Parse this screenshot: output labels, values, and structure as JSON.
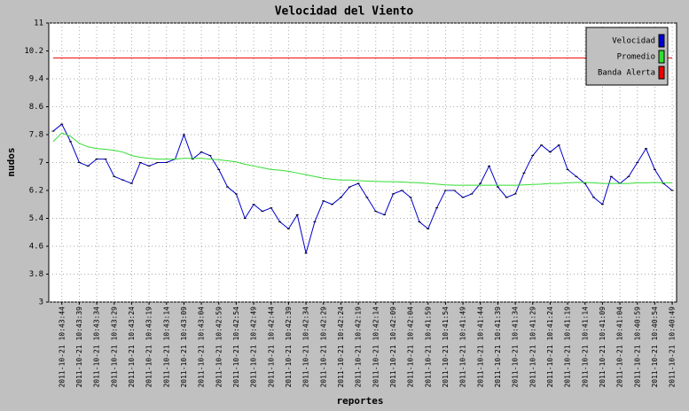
{
  "chart_data": {
    "type": "line",
    "title": "Velocidad del Viento",
    "xlabel": "reportes",
    "ylabel": "nudos",
    "categories": [
      null,
      "2011-10-21 10:43:44",
      null,
      "2011-10-21 10:43:39",
      null,
      "2011-10-21 10:43:34",
      null,
      "2011-10-21 10:43:29",
      null,
      "2011-10-21 10:43:24",
      null,
      "2011-10-21 10:43:19",
      null,
      "2011-10-21 10:43:14",
      null,
      "2011-10-21 10:43:09",
      null,
      "2011-10-21 10:43:04",
      null,
      "2011-10-21 10:42:59",
      null,
      "2011-10-21 10:42:54",
      null,
      "2011-10-21 10:42:49",
      null,
      "2011-10-21 10:42:44",
      null,
      "2011-10-21 10:42:39",
      null,
      "2011-10-21 10:42:34",
      null,
      "2011-10-21 10:42:29",
      null,
      "2011-10-21 10:42:24",
      null,
      "2011-10-21 10:42:19",
      null,
      "2011-10-21 10:42:14",
      null,
      "2011-10-21 10:42:09",
      null,
      "2011-10-21 10:42:04",
      null,
      "2011-10-21 10:41:59",
      null,
      "2011-10-21 10:41:54",
      null,
      "2011-10-21 10:41:49",
      null,
      "2011-10-21 10:41:44",
      null,
      "2011-10-21 10:41:39",
      null,
      "2011-10-21 10:41:34",
      null,
      "2011-10-21 10:41:29",
      null,
      "2011-10-21 10:41:24",
      null,
      "2011-10-21 10:41:19",
      null,
      "2011-10-21 10:41:14",
      null,
      "2011-10-21 10:41:09",
      null,
      "2011-10-21 10:41:04",
      null,
      "2011-10-21 10:40:59",
      null,
      "2011-10-21 10:40:54",
      null,
      "2011-10-21 10:40:49"
    ],
    "series": [
      {
        "name": "Velocidad",
        "color": "#0000cc",
        "values": [
          7.9,
          8.1,
          7.6,
          7.0,
          6.9,
          7.1,
          7.1,
          6.6,
          6.5,
          6.4,
          7.0,
          6.9,
          7.0,
          7.0,
          7.1,
          7.8,
          7.1,
          7.3,
          7.2,
          6.8,
          6.3,
          6.1,
          5.4,
          5.8,
          5.6,
          5.7,
          5.3,
          5.1,
          5.5,
          4.4,
          5.3,
          5.9,
          5.8,
          6.0,
          6.3,
          6.4,
          6.0,
          5.6,
          5.5,
          6.1,
          6.2,
          6.0,
          5.3,
          5.1,
          5.7,
          6.2,
          6.2,
          6.0,
          6.1,
          6.4,
          6.9,
          6.3,
          6.0,
          6.1,
          6.7,
          7.2,
          7.5,
          7.3,
          7.5,
          6.8,
          6.6,
          6.4,
          6.0,
          5.8,
          6.6,
          6.4,
          6.6,
          7.0,
          7.4,
          6.8,
          6.4,
          6.2
        ]
      },
      {
        "name": "Promedio",
        "color": "#33dd33",
        "values": [
          7.6,
          7.85,
          7.75,
          7.55,
          7.45,
          7.4,
          7.38,
          7.35,
          7.3,
          7.2,
          7.15,
          7.12,
          7.1,
          7.1,
          7.1,
          7.12,
          7.12,
          7.12,
          7.1,
          7.08,
          7.05,
          7.02,
          6.95,
          6.9,
          6.85,
          6.8,
          6.78,
          6.75,
          6.7,
          6.65,
          6.6,
          6.55,
          6.52,
          6.5,
          6.5,
          6.48,
          6.47,
          6.46,
          6.45,
          6.45,
          6.44,
          6.43,
          6.42,
          6.4,
          6.38,
          6.36,
          6.35,
          6.35,
          6.35,
          6.35,
          6.35,
          6.35,
          6.35,
          6.35,
          6.36,
          6.37,
          6.38,
          6.4,
          6.4,
          6.42,
          6.43,
          6.43,
          6.42,
          6.4,
          6.4,
          6.4,
          6.4,
          6.42,
          6.42,
          6.43,
          6.42,
          6.42
        ]
      },
      {
        "name": "Banda Alerta",
        "color": "#ee0000",
        "values": [
          10,
          10,
          10,
          10,
          10,
          10,
          10,
          10,
          10,
          10,
          10,
          10,
          10,
          10,
          10,
          10,
          10,
          10,
          10,
          10,
          10,
          10,
          10,
          10,
          10,
          10,
          10,
          10,
          10,
          10,
          10,
          10,
          10,
          10,
          10,
          10,
          10,
          10,
          10,
          10,
          10,
          10,
          10,
          10,
          10,
          10,
          10,
          10,
          10,
          10,
          10,
          10,
          10,
          10,
          10,
          10,
          10,
          10,
          10,
          10,
          10,
          10,
          10,
          10,
          10,
          10,
          10,
          10,
          10,
          10,
          10,
          10
        ]
      }
    ],
    "ylim": [
      3,
      11
    ],
    "yticks": [
      3,
      3.8,
      4.6,
      5.4,
      6.2,
      7,
      7.8,
      8.6,
      9.4,
      10.2,
      11
    ],
    "grid": true,
    "legend": "top-right"
  }
}
